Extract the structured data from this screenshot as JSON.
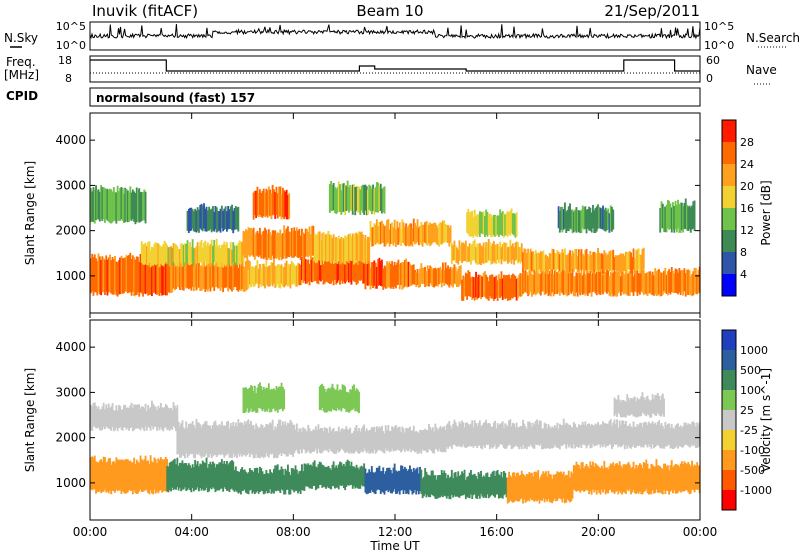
{
  "header": {
    "station": "Inuvik (fitACF)",
    "beam": "Beam 10",
    "date": "21/Sep/2011"
  },
  "strip_panels": {
    "nsky_label": "N.Sky",
    "nsearch_label": "N.Search",
    "noise_ticks": [
      "10^5",
      "10^0"
    ],
    "freq_label": "Freq.",
    "freq_unit": "[MHz]",
    "freq_ticks": [
      "18",
      "8"
    ],
    "nave_label": "Nave",
    "nave_ticks": [
      "60",
      "0"
    ],
    "cpid_label": "CPID",
    "cpid_value": "normalsound (fast) 157"
  },
  "colors": {
    "power_scale": [
      "#0000ff",
      "#2f55a8",
      "#3d8a55",
      "#6fc24a",
      "#f2d232",
      "#ffa01e",
      "#ff6a00",
      "#ff1a00"
    ],
    "velocity_scale": [
      "#1f3fbf",
      "#2c5fa0",
      "#3e8a5a",
      "#7dc855",
      "#c8c8c8",
      "#f2d232",
      "#ff9a1e",
      "#ff5a00",
      "#ff0000"
    ]
  },
  "chart_data": [
    {
      "type": "heatmap",
      "quantity": "power",
      "ylabel": "Slant Range [km]",
      "yticks": [
        1000,
        2000,
        3000,
        4000
      ],
      "ylim": [
        180,
        4600
      ],
      "xlim_hours": [
        0,
        24
      ],
      "colorbar_label": "Power [dB]",
      "colorbar_ticks": [
        4,
        8,
        12,
        16,
        20,
        24,
        28
      ],
      "bands": [
        {
          "t": [
            0,
            3.2
          ],
          "r": [
            600,
            1400
          ],
          "v": 28
        },
        {
          "t": [
            3.2,
            6.2
          ],
          "r": [
            700,
            1300
          ],
          "v": 26
        },
        {
          "t": [
            6.2,
            8.2
          ],
          "r": [
            780,
            1250
          ],
          "v": 22
        },
        {
          "t": [
            8.2,
            10.8
          ],
          "r": [
            850,
            1350
          ],
          "v": 28
        },
        {
          "t": [
            10.8,
            12.6
          ],
          "r": [
            750,
            1300
          ],
          "v": 28
        },
        {
          "t": [
            12.6,
            14.6
          ],
          "r": [
            800,
            1200
          ],
          "v": 26
        },
        {
          "t": [
            14.6,
            17.0
          ],
          "r": [
            500,
            1000
          ],
          "v": 28
        },
        {
          "t": [
            17.0,
            24
          ],
          "r": [
            600,
            1100
          ],
          "v": 26
        },
        {
          "t": [
            2.0,
            6.0
          ],
          "r": [
            1250,
            1700
          ],
          "v": 20
        },
        {
          "t": [
            6.0,
            8.8
          ],
          "r": [
            1400,
            2000
          ],
          "v": 26
        },
        {
          "t": [
            6.4,
            7.8
          ],
          "r": [
            2300,
            2900
          ],
          "v": 28
        },
        {
          "t": [
            8.8,
            11.0
          ],
          "r": [
            1300,
            1900
          ],
          "v": 22
        },
        {
          "t": [
            11.0,
            14.2
          ],
          "r": [
            1700,
            2150
          ],
          "v": 24
        },
        {
          "t": [
            14.2,
            17.0
          ],
          "r": [
            1300,
            1700
          ],
          "v": 22
        },
        {
          "t": [
            17.0,
            21.8
          ],
          "r": [
            1100,
            1500
          ],
          "v": 24
        },
        {
          "t": [
            0,
            2.2
          ],
          "r": [
            2200,
            2900
          ],
          "v": 14
        },
        {
          "t": [
            3.8,
            5.8
          ],
          "r": [
            2000,
            2500
          ],
          "v": 10
        },
        {
          "t": [
            9.4,
            11.6
          ],
          "r": [
            2400,
            3000
          ],
          "v": 16
        },
        {
          "t": [
            14.8,
            16.8
          ],
          "r": [
            1900,
            2400
          ],
          "v": 18
        },
        {
          "t": [
            18.4,
            20.6
          ],
          "r": [
            2000,
            2500
          ],
          "v": 12
        },
        {
          "t": [
            22.4,
            23.8
          ],
          "r": [
            2000,
            2600
          ],
          "v": 14
        }
      ]
    },
    {
      "type": "heatmap",
      "quantity": "velocity",
      "ylabel": "Slant Range [km]",
      "yticks": [
        1000,
        2000,
        3000,
        4000
      ],
      "ylim": [
        180,
        4600
      ],
      "xlabel": "Time UT",
      "xticks": [
        "00:00",
        "04:00",
        "08:00",
        "12:00",
        "16:00",
        "20:00",
        "00:00"
      ],
      "xlim_hours": [
        0,
        24
      ],
      "colorbar_label": "Velocity [m s^-1]",
      "colorbar_ticks": [
        1000,
        500,
        100,
        25,
        -25,
        -100,
        -500,
        -1000
      ],
      "bands": [
        {
          "t": [
            0,
            3.0
          ],
          "r": [
            800,
            1500
          ],
          "v": -200
        },
        {
          "t": [
            3.0,
            5.6
          ],
          "r": [
            850,
            1450
          ],
          "v": 200
        },
        {
          "t": [
            5.6,
            8.4
          ],
          "r": [
            800,
            1300
          ],
          "v": 300
        },
        {
          "t": [
            8.4,
            10.8
          ],
          "r": [
            900,
            1400
          ],
          "v": 150
        },
        {
          "t": [
            10.8,
            13.0
          ],
          "r": [
            800,
            1300
          ],
          "v": 700
        },
        {
          "t": [
            13.0,
            16.4
          ],
          "r": [
            700,
            1200
          ],
          "v": 200
        },
        {
          "t": [
            16.4,
            19.0
          ],
          "r": [
            600,
            1200
          ],
          "v": -250
        },
        {
          "t": [
            19.0,
            24
          ],
          "r": [
            800,
            1400
          ],
          "v": -200
        },
        {
          "t": [
            0,
            3.4
          ],
          "r": [
            2200,
            2700
          ],
          "v": 0
        },
        {
          "t": [
            3.4,
            8.0
          ],
          "r": [
            1600,
            2300
          ],
          "v": 0
        },
        {
          "t": [
            8.0,
            14.0
          ],
          "r": [
            1700,
            2200
          ],
          "v": 0
        },
        {
          "t": [
            14.0,
            18.0
          ],
          "r": [
            1800,
            2300
          ],
          "v": 0
        },
        {
          "t": [
            18.0,
            24
          ],
          "r": [
            1800,
            2300
          ],
          "v": 0
        },
        {
          "t": [
            6.0,
            7.6
          ],
          "r": [
            2600,
            3100
          ],
          "v": 80
        },
        {
          "t": [
            9.0,
            10.6
          ],
          "r": [
            2600,
            3100
          ],
          "v": 60
        },
        {
          "t": [
            20.6,
            22.6
          ],
          "r": [
            2500,
            2900
          ],
          "v": 0
        }
      ]
    }
  ]
}
